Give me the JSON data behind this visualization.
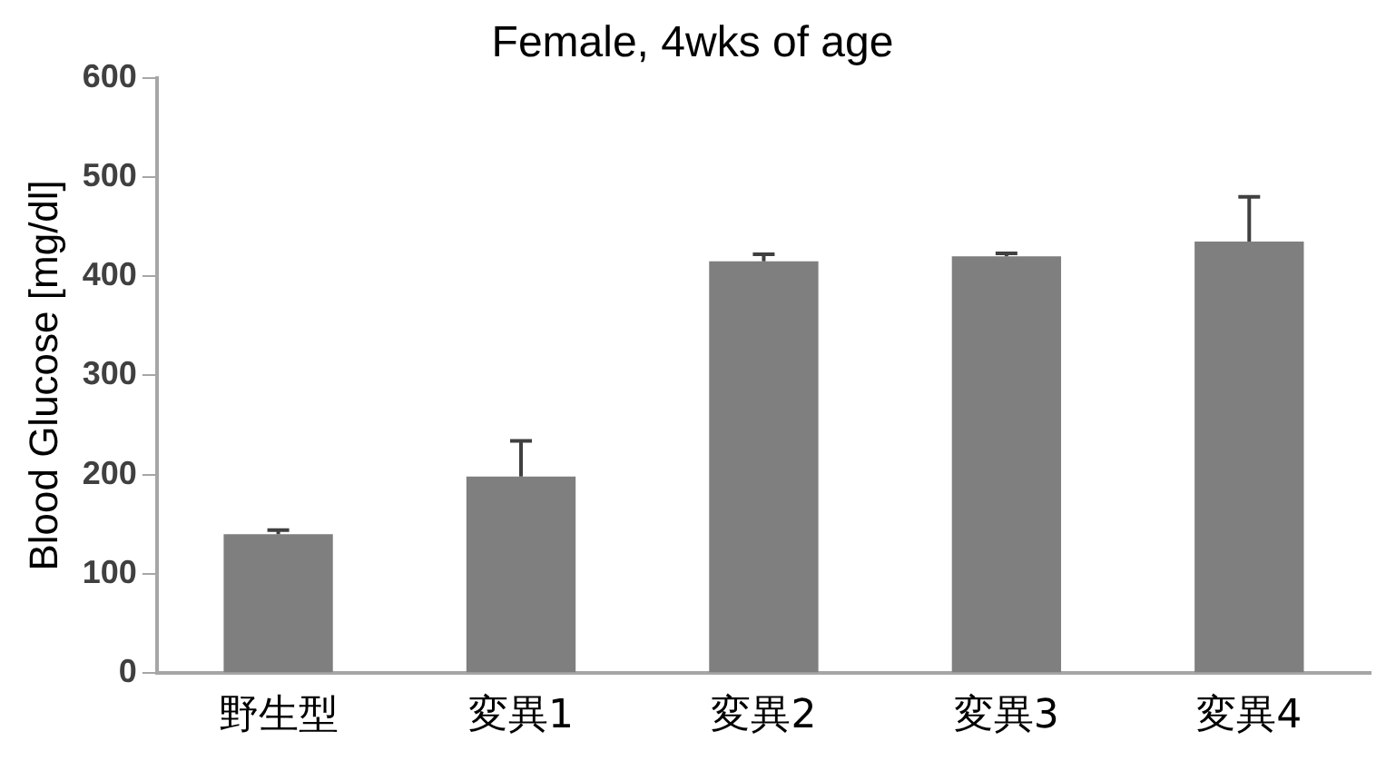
{
  "chart_data": {
    "type": "bar",
    "title": "Female, 4wks of age",
    "ylabel": "Blood Glucose [mg/dl]",
    "categories": [
      "野生型",
      "変異1",
      "変異2",
      "変異3",
      "変異4"
    ],
    "values": [
      140,
      198,
      415,
      420,
      435
    ],
    "errors": [
      [
        140,
        144
      ],
      [
        198,
        234
      ],
      [
        415,
        422
      ],
      [
        420,
        423
      ],
      [
        435,
        480
      ]
    ],
    "color": "#7f7f7f",
    "ylim": [
      0,
      600
    ],
    "yticks": [
      0,
      100,
      200,
      300,
      400,
      500,
      600
    ],
    "grid": false,
    "legend": false
  }
}
